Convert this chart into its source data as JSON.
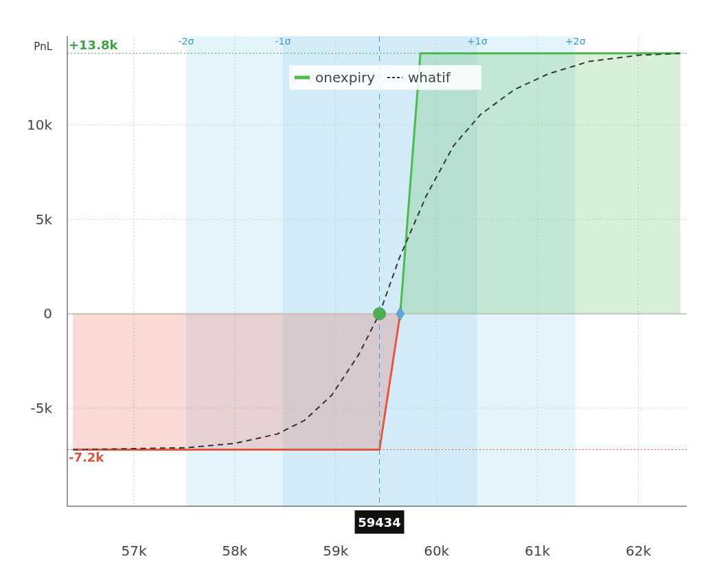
{
  "chart_data": {
    "type": "line",
    "ylabel": "PnL",
    "xlim": [
      56340,
      62480
    ],
    "ylim": [
      -10200,
      14700
    ],
    "xticks": [
      {
        "value": 57000,
        "label": "57k"
      },
      {
        "value": 58000,
        "label": "58k"
      },
      {
        "value": 59000,
        "label": "59k"
      },
      {
        "value": 60000,
        "label": "60k"
      },
      {
        "value": 61000,
        "label": "61k"
      },
      {
        "value": 62000,
        "label": "62k"
      }
    ],
    "yticks": [
      {
        "value": -5000,
        "label": "-5k"
      },
      0,
      {
        "value": 5000,
        "label": "5k"
      },
      {
        "value": 10000,
        "label": "10k"
      }
    ],
    "grid": true,
    "legend": "top",
    "bands": [
      {
        "axis": "x",
        "from": 57517,
        "to": 58477,
        "label": "-2σ",
        "color": "#e4f4fb"
      },
      {
        "axis": "x",
        "from": 58477,
        "to": 59434,
        "label": "-1σ",
        "color": "#d2ebf6"
      },
      {
        "axis": "x",
        "from": 61376,
        "to": 60403,
        "label": "+2σ",
        "color": "#e4f4fb"
      },
      {
        "axis": "x",
        "from": 60403,
        "to": 59434,
        "label": "+1σ",
        "color": "#d2ebf6"
      }
    ],
    "ref_lines": [
      {
        "axis": "x",
        "value": 59434,
        "label": "59434",
        "color": "#3a9cc4",
        "line_style": "dashed"
      },
      {
        "axis": "y",
        "value": 13800,
        "label": "+13.8k",
        "color": "#3fa24a",
        "line_style": "dotted"
      },
      {
        "axis": "y",
        "value": -7200,
        "label": "-7.2k",
        "color": "#e0533b",
        "line_style": "dotted"
      }
    ],
    "series": [
      {
        "name": "onexpiry",
        "type": "area",
        "color": "#4cbb4c",
        "line_style": "solid",
        "x": [
          59640,
          59840,
          62416
        ],
        "values": [
          0,
          13800,
          13800
        ]
      },
      {
        "type": "area",
        "color": "#e8553f",
        "line_style": "solid",
        "x": [
          56396,
          59434,
          59640
        ],
        "values": [
          -7200,
          -7200,
          0
        ]
      },
      {
        "name": "whatif",
        "type": "line",
        "color": "#333333",
        "line_style": "dashed",
        "x": [
          56396,
          57517,
          58000,
          58423,
          58691,
          58960,
          59228,
          59434,
          59631,
          59899,
          60168,
          60436,
          60772,
          61107,
          61510,
          62000,
          62416
        ],
        "values": [
          -7200,
          -7100,
          -6870,
          -6370,
          -5650,
          -4320,
          -2170,
          0,
          2950,
          6260,
          8900,
          10560,
          11880,
          12710,
          13370,
          13700,
          13800
        ]
      },
      {
        "type": "scatter",
        "color": "#4caf50",
        "marker": "circle",
        "x": [
          59434
        ],
        "values": [
          0
        ]
      },
      {
        "type": "scatter",
        "color": "#5aa9e6",
        "marker": "diamond",
        "x": [
          59640
        ],
        "values": [
          0
        ]
      }
    ]
  }
}
